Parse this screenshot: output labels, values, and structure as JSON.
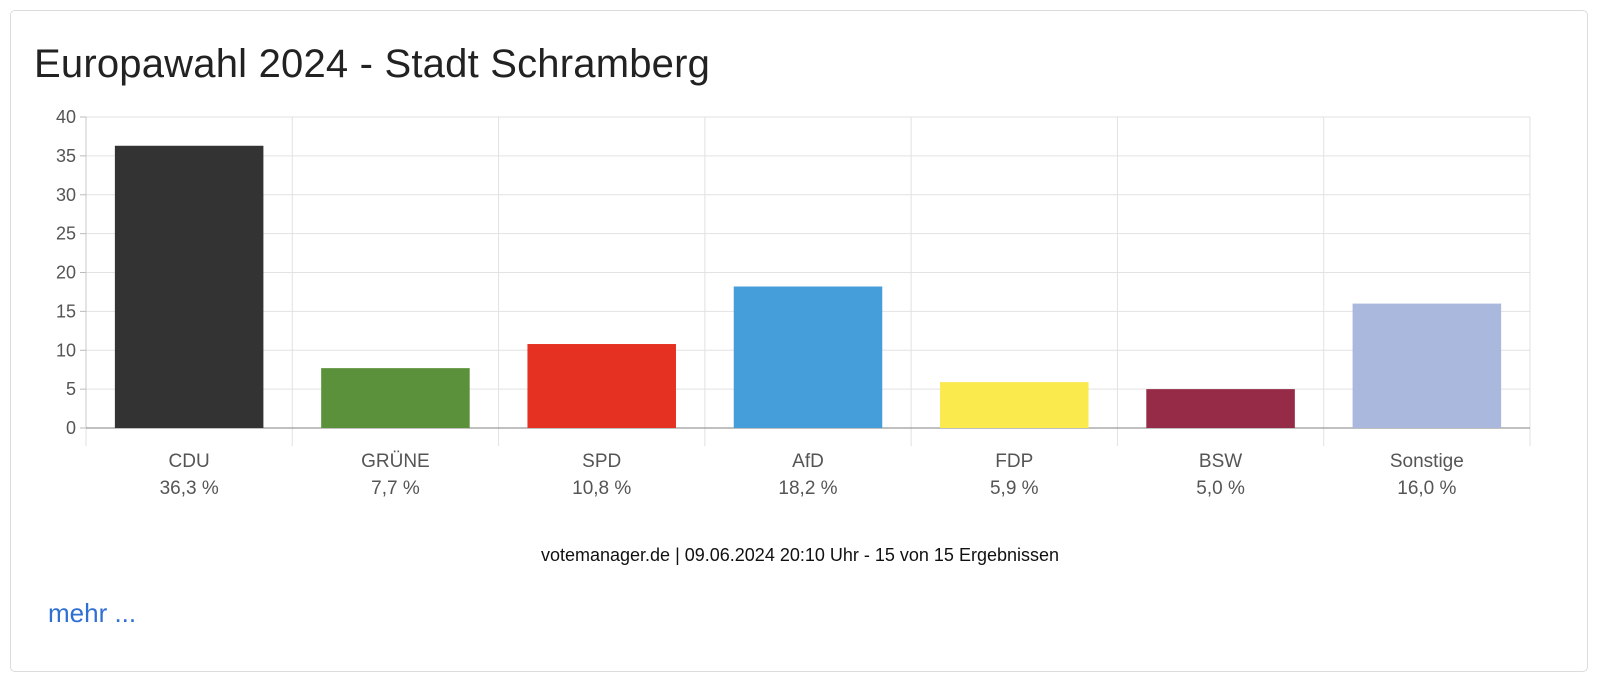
{
  "title": "Europawahl 2024 - Stadt Schramberg",
  "chart_data": {
    "type": "bar",
    "categories": [
      "CDU",
      "GRÜNE",
      "SPD",
      "AfD",
      "FDP",
      "BSW",
      "Sonstige"
    ],
    "values": [
      36.3,
      7.7,
      10.8,
      18.2,
      5.9,
      5.0,
      16.0
    ],
    "value_labels": [
      "36,3 %",
      "7,7 %",
      "10,8 %",
      "18,2 %",
      "5,9 %",
      "5,0 %",
      "16,0 %"
    ],
    "colors": [
      "#333333",
      "#5c913b",
      "#e53121",
      "#459dda",
      "#fbea4e",
      "#962b48",
      "#aab8de"
    ],
    "ylim": [
      0,
      40
    ],
    "yticks": [
      0,
      5,
      10,
      15,
      20,
      25,
      30,
      35,
      40
    ],
    "grid": true,
    "xlabel": "",
    "ylabel": ""
  },
  "footer": "votemanager.de | 09.06.2024 20:10 Uhr - 15 von 15 Ergebnissen",
  "more_link": "mehr ..."
}
